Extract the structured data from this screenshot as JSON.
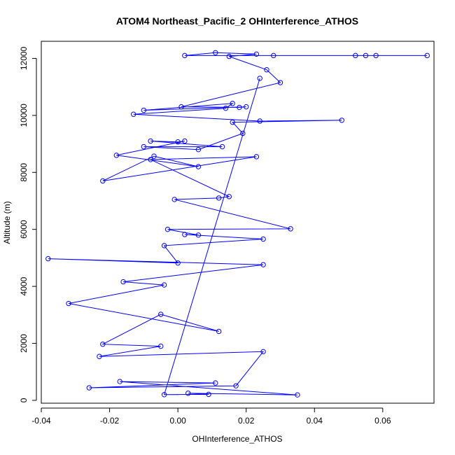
{
  "chart_data": {
    "type": "line",
    "title": "ATOM4 Northeast_Pacific_2 OHInterference_ATHOS",
    "xlabel": "OHInterference_ATHOS",
    "ylabel": "Altitude (m)",
    "xlim": [
      -0.04,
      0.075
    ],
    "ylim": [
      -100,
      12600
    ],
    "x_ticks": [
      -0.04,
      -0.02,
      0.0,
      0.02,
      0.04,
      0.06
    ],
    "x_tick_labels": [
      "-0.04",
      "-0.02",
      "0.00",
      "0.02",
      "0.04",
      "0.06"
    ],
    "y_ticks": [
      0,
      2000,
      4000,
      6000,
      8000,
      10000,
      12000
    ],
    "y_tick_labels": [
      "0",
      "2000",
      "4000",
      "6000",
      "8000",
      "10000",
      "12000"
    ],
    "grid": false,
    "marker": "open-circle",
    "colors": {
      "series": "#0000ff",
      "axis": "#000000"
    },
    "series": [
      {
        "x": [
          0.073,
          0.058,
          0.055,
          0.052,
          0.028,
          0.002,
          0.011,
          0.023,
          0.015,
          0.026,
          0.03,
          0.001,
          0.018,
          0.02,
          -0.01,
          0.016,
          0.014,
          -0.013,
          0.024,
          0.048,
          0.016,
          0.019,
          0.006,
          -0.01,
          0.013,
          -0.008,
          0.0,
          0.002,
          -0.018,
          0.006,
          -0.007,
          -0.022,
          0.023,
          -0.008,
          0.015,
          0.012,
          -0.001,
          0.033,
          -0.003,
          0.006,
          0.002,
          0.025,
          -0.004,
          0.0,
          -0.038,
          0.025,
          -0.016,
          -0.004,
          -0.032,
          0.012,
          -0.005,
          -0.022,
          -0.005,
          -0.023,
          0.025,
          0.017,
          -0.026,
          0.011,
          -0.017,
          0.035,
          0.003,
          0.009,
          -0.004,
          0.024
        ],
        "y": [
          12100,
          12100,
          12100,
          12100,
          12100,
          12100,
          12200,
          12150,
          12070,
          11600,
          11150,
          10300,
          10280,
          10300,
          10180,
          10420,
          10250,
          10040,
          9800,
          9830,
          9760,
          9370,
          8800,
          8900,
          8900,
          9100,
          9070,
          9100,
          8600,
          8200,
          8570,
          7700,
          8550,
          8450,
          7150,
          7100,
          7050,
          6020,
          6000,
          5800,
          5820,
          5660,
          5430,
          4820,
          4970,
          4760,
          4160,
          4050,
          3400,
          2420,
          3020,
          1970,
          1900,
          1540,
          1710,
          510,
          440,
          610,
          660,
          190,
          250,
          210,
          200,
          11300
        ]
      }
    ]
  }
}
